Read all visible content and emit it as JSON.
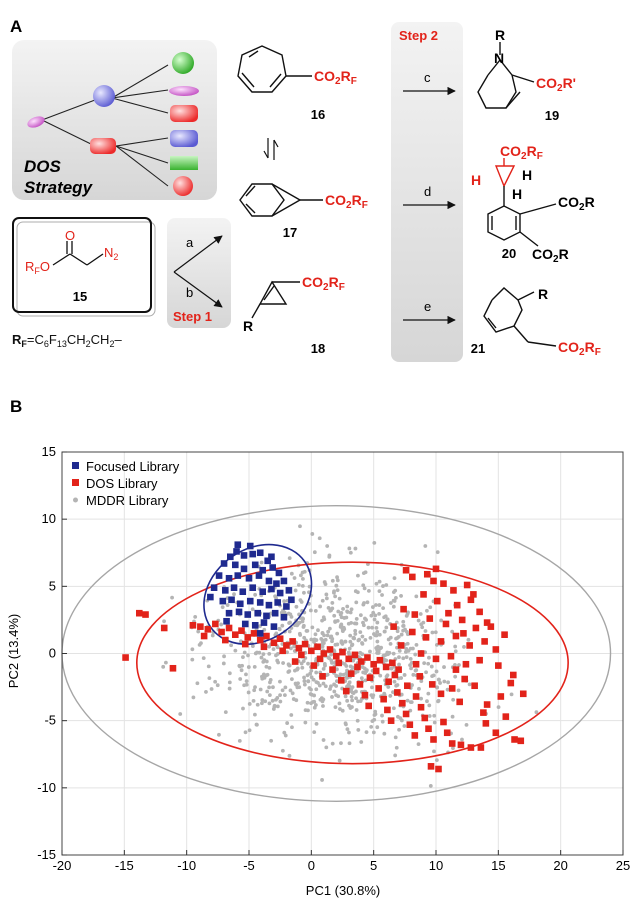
{
  "panel_a": {
    "label": "A",
    "dos_strategy": [
      "DOS",
      "Strategy"
    ],
    "step1": "Step 1",
    "step2": "Step 2",
    "arrow_a": "a",
    "arrow_b": "b",
    "arrow_c": "c",
    "arrow_d": "d",
    "arrow_e": "e",
    "reagent": {
      "ester_o": "O",
      "rf_o": "RFO",
      "n2": "N2",
      "number": "15"
    },
    "rf_definition": "RF=C6F13CH2CH2–",
    "compounds": [
      {
        "number": "16",
        "substituent": "CO2RF"
      },
      {
        "number": "17",
        "substituent": "CO2RF"
      },
      {
        "number": "18",
        "substituent": "CO2RF",
        "r": "R"
      }
    ],
    "products": [
      {
        "number": "19",
        "n_sub": "R",
        "n": "N",
        "substituent": "CO2R'"
      },
      {
        "number": "20",
        "substituent": "CO2RF",
        "h1": "H",
        "h2": "H",
        "h3": "H",
        "ester1": "CO2R",
        "ester2": "CO2R"
      },
      {
        "number": "21",
        "r": "R",
        "substituent": "CO2RF"
      }
    ]
  },
  "panel_b": {
    "label": "B"
  },
  "colors": {
    "focused": "#1f2a8f",
    "dos": "#e2231a",
    "mddr": "#b4b4b4"
  },
  "chart_data": {
    "type": "scatter",
    "xlabel": "PC1 (30.8%)",
    "ylabel": "PC2 (13.4%)",
    "xlim": [
      -20,
      25
    ],
    "ylim": [
      -15,
      15
    ],
    "xticks": [
      -20,
      -15,
      -10,
      -5,
      0,
      5,
      10,
      15,
      20,
      25
    ],
    "yticks": [
      -15,
      -10,
      -5,
      0,
      5,
      10,
      15
    ],
    "grid": true,
    "legend_position": "top-left",
    "ellipses": [
      {
        "series": "Focused Library",
        "center": [
          -4.3,
          4.4
        ],
        "radii": [
          4.6,
          3.4
        ],
        "rotation_deg": -35
      },
      {
        "series": "DOS Library",
        "center": [
          3.3,
          -0.7
        ],
        "radii": [
          17.3,
          7.5
        ],
        "rotation_deg": 0
      },
      {
        "series": "MDDR Library",
        "center": [
          2.0,
          0.0
        ],
        "radii": [
          22.0,
          11.0
        ],
        "rotation_deg": 0
      }
    ],
    "series": [
      {
        "name": "Focused Library",
        "marker": "square",
        "points": [
          [
            -6.5,
            7.2
          ],
          [
            -6.0,
            7.6
          ],
          [
            -5.4,
            7.3
          ],
          [
            -4.7,
            7.4
          ],
          [
            -4.1,
            7.5
          ],
          [
            -3.5,
            6.9
          ],
          [
            -7.0,
            6.7
          ],
          [
            -6.1,
            6.6
          ],
          [
            -5.4,
            6.3
          ],
          [
            -4.5,
            6.6
          ],
          [
            -3.9,
            6.2
          ],
          [
            -3.1,
            6.4
          ],
          [
            -2.6,
            6.0
          ],
          [
            -7.4,
            5.8
          ],
          [
            -6.6,
            5.6
          ],
          [
            -5.9,
            5.8
          ],
          [
            -5.0,
            5.6
          ],
          [
            -4.2,
            5.8
          ],
          [
            -3.4,
            5.4
          ],
          [
            -2.8,
            5.2
          ],
          [
            -2.2,
            5.4
          ],
          [
            -7.8,
            4.9
          ],
          [
            -6.9,
            4.7
          ],
          [
            -6.2,
            4.9
          ],
          [
            -5.5,
            4.6
          ],
          [
            -4.7,
            4.9
          ],
          [
            -3.9,
            4.6
          ],
          [
            -3.2,
            4.8
          ],
          [
            -2.5,
            4.5
          ],
          [
            -1.8,
            4.7
          ],
          [
            -7.1,
            3.9
          ],
          [
            -6.4,
            4.0
          ],
          [
            -5.7,
            3.7
          ],
          [
            -4.9,
            3.9
          ],
          [
            -4.1,
            3.8
          ],
          [
            -3.4,
            3.6
          ],
          [
            -2.7,
            3.8
          ],
          [
            -2.0,
            3.5
          ],
          [
            -6.6,
            3.0
          ],
          [
            -5.8,
            3.1
          ],
          [
            -5.1,
            2.9
          ],
          [
            -4.3,
            3.0
          ],
          [
            -3.6,
            2.8
          ],
          [
            -2.9,
            3.0
          ],
          [
            -2.2,
            2.7
          ],
          [
            -5.3,
            2.2
          ],
          [
            -4.5,
            2.1
          ],
          [
            -3.8,
            2.3
          ],
          [
            -3.0,
            2.0
          ],
          [
            -4.1,
            1.5
          ],
          [
            -5.9,
            8.1
          ],
          [
            -4.9,
            8.0
          ],
          [
            -1.6,
            4.0
          ],
          [
            -8.1,
            4.2
          ],
          [
            -3.2,
            7.2
          ],
          [
            -6.8,
            2.4
          ]
        ]
      },
      {
        "name": "DOS Library",
        "marker": "square",
        "points": [
          [
            -13.8,
            3.0
          ],
          [
            -13.3,
            2.9
          ],
          [
            -14.9,
            -0.3
          ],
          [
            -11.8,
            1.9
          ],
          [
            -11.1,
            -1.1
          ],
          [
            -9.5,
            2.1
          ],
          [
            -8.9,
            2.0
          ],
          [
            -8.3,
            1.8
          ],
          [
            -7.7,
            2.2
          ],
          [
            -7.2,
            1.6
          ],
          [
            -6.6,
            1.9
          ],
          [
            -6.1,
            1.4
          ],
          [
            -5.6,
            1.7
          ],
          [
            -5.1,
            1.2
          ],
          [
            -4.6,
            1.5
          ],
          [
            -4.1,
            1.0
          ],
          [
            -3.6,
            1.3
          ],
          [
            -3.0,
            0.8
          ],
          [
            -2.5,
            1.1
          ],
          [
            -2.0,
            0.6
          ],
          [
            -1.5,
            0.9
          ],
          [
            -1.0,
            0.4
          ],
          [
            -0.5,
            0.7
          ],
          [
            0.0,
            0.2
          ],
          [
            0.5,
            0.5
          ],
          [
            1.0,
            0.0
          ],
          [
            1.5,
            0.3
          ],
          [
            2.0,
            -0.2
          ],
          [
            2.5,
            0.1
          ],
          [
            3.0,
            -0.4
          ],
          [
            3.5,
            -0.1
          ],
          [
            4.0,
            -0.6
          ],
          [
            4.5,
            -0.3
          ],
          [
            5.0,
            -0.8
          ],
          [
            5.5,
            -0.5
          ],
          [
            6.0,
            -1.0
          ],
          [
            6.5,
            -0.7
          ],
          [
            7.0,
            -1.2
          ],
          [
            -8.6,
            1.3
          ],
          [
            -6.9,
            1.0
          ],
          [
            -5.3,
            0.7
          ],
          [
            -3.8,
            0.5
          ],
          [
            -2.3,
            0.2
          ],
          [
            -0.8,
            -0.1
          ],
          [
            0.7,
            -0.4
          ],
          [
            2.2,
            -0.7
          ],
          [
            3.7,
            -1.0
          ],
          [
            5.2,
            -1.3
          ],
          [
            6.7,
            -1.6
          ],
          [
            -1.3,
            -0.6
          ],
          [
            0.2,
            -0.9
          ],
          [
            1.7,
            -1.2
          ],
          [
            3.2,
            -1.5
          ],
          [
            4.7,
            -1.8
          ],
          [
            6.2,
            -2.1
          ],
          [
            7.7,
            -2.4
          ],
          [
            0.9,
            -1.7
          ],
          [
            2.4,
            -2.0
          ],
          [
            3.9,
            -2.3
          ],
          [
            5.4,
            -2.6
          ],
          [
            6.9,
            -2.9
          ],
          [
            8.4,
            -3.2
          ],
          [
            2.8,
            -2.8
          ],
          [
            4.3,
            -3.1
          ],
          [
            5.8,
            -3.4
          ],
          [
            7.3,
            -3.7
          ],
          [
            8.8,
            -4.0
          ],
          [
            4.6,
            -3.9
          ],
          [
            6.1,
            -4.2
          ],
          [
            7.6,
            -4.5
          ],
          [
            9.1,
            -4.8
          ],
          [
            10.6,
            -5.1
          ],
          [
            6.4,
            -5.0
          ],
          [
            7.9,
            -5.3
          ],
          [
            9.4,
            -5.6
          ],
          [
            10.9,
            -5.9
          ],
          [
            8.3,
            -6.1
          ],
          [
            9.8,
            -6.4
          ],
          [
            11.3,
            -6.7
          ],
          [
            12.8,
            -7.0
          ],
          [
            9.6,
            -8.4
          ],
          [
            10.2,
            -8.6
          ],
          [
            12.0,
            -6.8
          ],
          [
            13.6,
            -7.0
          ],
          [
            14.0,
            -5.2
          ],
          [
            14.8,
            -5.9
          ],
          [
            15.6,
            -4.7
          ],
          [
            16.3,
            -6.4
          ],
          [
            16.8,
            -6.5
          ],
          [
            15.2,
            -3.2
          ],
          [
            14.1,
            -3.8
          ],
          [
            16.2,
            -1.6
          ],
          [
            13.1,
            -2.4
          ],
          [
            12.3,
            -1.9
          ],
          [
            11.3,
            -2.6
          ],
          [
            10.4,
            -3.0
          ],
          [
            9.7,
            -2.3
          ],
          [
            8.7,
            -1.7
          ],
          [
            11.9,
            -3.6
          ],
          [
            13.8,
            -4.4
          ],
          [
            7.6,
            6.2
          ],
          [
            8.1,
            5.7
          ],
          [
            9.3,
            5.9
          ],
          [
            10.6,
            5.2
          ],
          [
            11.4,
            4.7
          ],
          [
            12.5,
            5.1
          ],
          [
            9.0,
            4.4
          ],
          [
            10.1,
            3.9
          ],
          [
            11.7,
            3.6
          ],
          [
            12.8,
            4.0
          ],
          [
            13.5,
            3.1
          ],
          [
            7.4,
            3.3
          ],
          [
            8.3,
            2.9
          ],
          [
            9.5,
            2.6
          ],
          [
            10.8,
            2.2
          ],
          [
            12.1,
            2.5
          ],
          [
            13.2,
            1.9
          ],
          [
            14.1,
            2.3
          ],
          [
            8.1,
            1.6
          ],
          [
            9.2,
            1.2
          ],
          [
            10.4,
            0.9
          ],
          [
            11.6,
            1.3
          ],
          [
            12.7,
            0.6
          ],
          [
            13.9,
            0.9
          ],
          [
            14.8,
            0.3
          ],
          [
            8.8,
            0.0
          ],
          [
            10.0,
            -0.4
          ],
          [
            11.2,
            -0.2
          ],
          [
            12.4,
            -0.8
          ],
          [
            13.5,
            -0.5
          ],
          [
            15.0,
            -0.9
          ],
          [
            16.0,
            -2.2
          ],
          [
            17.0,
            -3.0
          ],
          [
            6.6,
            2.0
          ],
          [
            9.8,
            5.4
          ],
          [
            11.0,
            3.0
          ],
          [
            12.2,
            1.5
          ],
          [
            14.4,
            2.0
          ],
          [
            7.2,
            0.6
          ],
          [
            15.5,
            1.4
          ],
          [
            13.0,
            4.4
          ],
          [
            10.0,
            6.3
          ],
          [
            8.4,
            -0.8
          ],
          [
            11.6,
            -1.2
          ]
        ]
      },
      {
        "name": "MDDR Library",
        "marker": "circle",
        "points": []
      }
    ]
  }
}
